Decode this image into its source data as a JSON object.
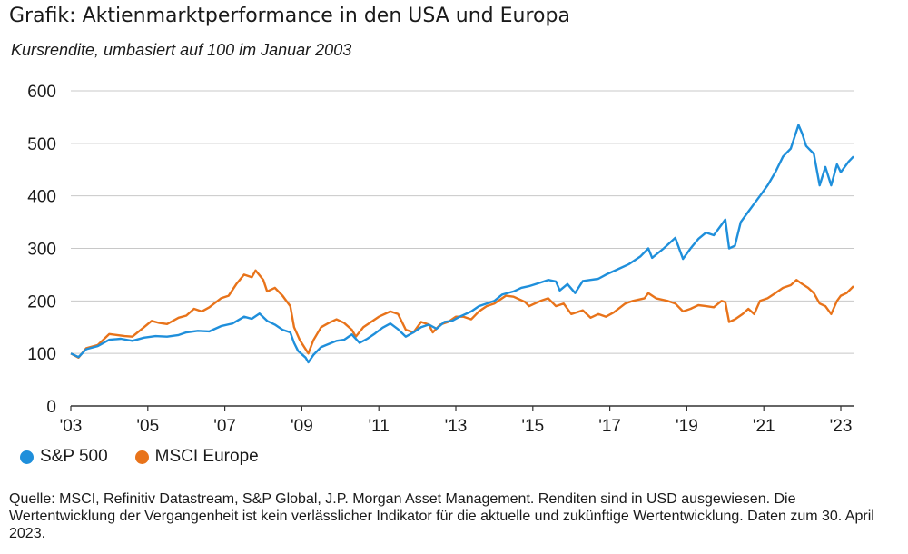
{
  "title": "Grafik: Aktienmarktperformance in den USA und Europa",
  "subtitle": "Kursrendite, umbasiert auf 100 im Januar 2003",
  "source": "Quelle: MSCI, Refinitiv Datastream, S&P Global, J.P. Morgan Asset Management. Renditen sind in USD ausgewiesen. Die Wertentwicklung der Vergangenheit ist kein verlässlicher Indikator für die aktuelle und zukünftige Wertentwicklung. Daten zum 30. April 2023.",
  "chart_data": {
    "type": "line",
    "ylim": [
      0,
      600
    ],
    "yticks": [
      "0",
      "100",
      "200",
      "300",
      "400",
      "500",
      "600"
    ],
    "xlim": [
      2003.0,
      2023.33
    ],
    "xticks": [
      {
        "x": 2003,
        "label": "'03"
      },
      {
        "x": 2005,
        "label": "'05"
      },
      {
        "x": 2007,
        "label": "'07"
      },
      {
        "x": 2009,
        "label": "'09"
      },
      {
        "x": 2011,
        "label": "'11"
      },
      {
        "x": 2013,
        "label": "'13"
      },
      {
        "x": 2015,
        "label": "'15"
      },
      {
        "x": 2017,
        "label": "'17"
      },
      {
        "x": 2019,
        "label": "'19"
      },
      {
        "x": 2021,
        "label": "'21"
      },
      {
        "x": 2023,
        "label": "'23"
      }
    ],
    "grid": true,
    "legend": "bottom-left",
    "series": [
      {
        "name": "S&P 500",
        "color": "#1f8fdb",
        "points": [
          [
            2003.0,
            100
          ],
          [
            2003.2,
            93
          ],
          [
            2003.4,
            108
          ],
          [
            2003.7,
            114
          ],
          [
            2004.0,
            126
          ],
          [
            2004.3,
            128
          ],
          [
            2004.6,
            124
          ],
          [
            2004.9,
            130
          ],
          [
            2005.2,
            133
          ],
          [
            2005.5,
            132
          ],
          [
            2005.8,
            135
          ],
          [
            2006.0,
            140
          ],
          [
            2006.3,
            143
          ],
          [
            2006.6,
            142
          ],
          [
            2006.9,
            152
          ],
          [
            2007.2,
            157
          ],
          [
            2007.5,
            170
          ],
          [
            2007.7,
            166
          ],
          [
            2007.9,
            176
          ],
          [
            2008.1,
            162
          ],
          [
            2008.3,
            155
          ],
          [
            2008.5,
            145
          ],
          [
            2008.7,
            140
          ],
          [
            2008.8,
            120
          ],
          [
            2008.9,
            105
          ],
          [
            2009.1,
            92
          ],
          [
            2009.17,
            83
          ],
          [
            2009.3,
            97
          ],
          [
            2009.5,
            112
          ],
          [
            2009.7,
            118
          ],
          [
            2009.9,
            124
          ],
          [
            2010.1,
            126
          ],
          [
            2010.3,
            136
          ],
          [
            2010.5,
            120
          ],
          [
            2010.7,
            128
          ],
          [
            2010.9,
            138
          ],
          [
            2011.1,
            149
          ],
          [
            2011.3,
            157
          ],
          [
            2011.5,
            146
          ],
          [
            2011.7,
            132
          ],
          [
            2011.9,
            140
          ],
          [
            2012.1,
            150
          ],
          [
            2012.3,
            155
          ],
          [
            2012.5,
            147
          ],
          [
            2012.7,
            160
          ],
          [
            2012.9,
            162
          ],
          [
            2013.1,
            170
          ],
          [
            2013.4,
            180
          ],
          [
            2013.6,
            190
          ],
          [
            2013.8,
            195
          ],
          [
            2014.0,
            200
          ],
          [
            2014.2,
            212
          ],
          [
            2014.5,
            218
          ],
          [
            2014.7,
            225
          ],
          [
            2014.9,
            228
          ],
          [
            2015.2,
            235
          ],
          [
            2015.4,
            240
          ],
          [
            2015.6,
            237
          ],
          [
            2015.7,
            220
          ],
          [
            2015.9,
            232
          ],
          [
            2016.1,
            215
          ],
          [
            2016.3,
            238
          ],
          [
            2016.5,
            240
          ],
          [
            2016.7,
            242
          ],
          [
            2016.9,
            250
          ],
          [
            2017.2,
            260
          ],
          [
            2017.5,
            270
          ],
          [
            2017.8,
            285
          ],
          [
            2018.0,
            300
          ],
          [
            2018.1,
            282
          ],
          [
            2018.4,
            300
          ],
          [
            2018.7,
            320
          ],
          [
            2018.9,
            280
          ],
          [
            2019.1,
            300
          ],
          [
            2019.3,
            318
          ],
          [
            2019.5,
            330
          ],
          [
            2019.7,
            325
          ],
          [
            2019.9,
            345
          ],
          [
            2020.0,
            355
          ],
          [
            2020.1,
            300
          ],
          [
            2020.25,
            305
          ],
          [
            2020.4,
            350
          ],
          [
            2020.6,
            370
          ],
          [
            2020.75,
            385
          ],
          [
            2020.9,
            400
          ],
          [
            2021.1,
            420
          ],
          [
            2021.3,
            445
          ],
          [
            2021.5,
            475
          ],
          [
            2021.7,
            490
          ],
          [
            2021.9,
            535
          ],
          [
            2022.0,
            518
          ],
          [
            2022.1,
            495
          ],
          [
            2022.3,
            480
          ],
          [
            2022.45,
            420
          ],
          [
            2022.6,
            455
          ],
          [
            2022.75,
            420
          ],
          [
            2022.9,
            460
          ],
          [
            2023.0,
            445
          ],
          [
            2023.1,
            455
          ],
          [
            2023.2,
            465
          ],
          [
            2023.33,
            475
          ]
        ]
      },
      {
        "name": "MSCI Europe",
        "color": "#e8731a",
        "points": [
          [
            2003.0,
            100
          ],
          [
            2003.2,
            92
          ],
          [
            2003.4,
            110
          ],
          [
            2003.7,
            116
          ],
          [
            2004.0,
            137
          ],
          [
            2004.2,
            135
          ],
          [
            2004.4,
            133
          ],
          [
            2004.6,
            132
          ],
          [
            2004.9,
            150
          ],
          [
            2005.1,
            162
          ],
          [
            2005.3,
            158
          ],
          [
            2005.5,
            156
          ],
          [
            2005.8,
            168
          ],
          [
            2006.0,
            172
          ],
          [
            2006.2,
            185
          ],
          [
            2006.4,
            180
          ],
          [
            2006.6,
            188
          ],
          [
            2006.9,
            205
          ],
          [
            2007.1,
            210
          ],
          [
            2007.3,
            232
          ],
          [
            2007.5,
            250
          ],
          [
            2007.7,
            245
          ],
          [
            2007.8,
            258
          ],
          [
            2008.0,
            240
          ],
          [
            2008.1,
            218
          ],
          [
            2008.3,
            225
          ],
          [
            2008.5,
            210
          ],
          [
            2008.7,
            190
          ],
          [
            2008.8,
            150
          ],
          [
            2008.95,
            125
          ],
          [
            2009.17,
            100
          ],
          [
            2009.3,
            125
          ],
          [
            2009.5,
            150
          ],
          [
            2009.7,
            158
          ],
          [
            2009.9,
            165
          ],
          [
            2010.1,
            158
          ],
          [
            2010.3,
            145
          ],
          [
            2010.4,
            132
          ],
          [
            2010.6,
            150
          ],
          [
            2010.8,
            160
          ],
          [
            2011.0,
            170
          ],
          [
            2011.3,
            180
          ],
          [
            2011.5,
            175
          ],
          [
            2011.7,
            145
          ],
          [
            2011.9,
            140
          ],
          [
            2012.1,
            160
          ],
          [
            2012.3,
            155
          ],
          [
            2012.4,
            140
          ],
          [
            2012.6,
            155
          ],
          [
            2012.8,
            160
          ],
          [
            2013.0,
            170
          ],
          [
            2013.2,
            170
          ],
          [
            2013.4,
            165
          ],
          [
            2013.6,
            180
          ],
          [
            2013.8,
            190
          ],
          [
            2014.0,
            195
          ],
          [
            2014.3,
            210
          ],
          [
            2014.5,
            208
          ],
          [
            2014.8,
            198
          ],
          [
            2014.9,
            190
          ],
          [
            2015.2,
            200
          ],
          [
            2015.4,
            205
          ],
          [
            2015.6,
            190
          ],
          [
            2015.8,
            195
          ],
          [
            2016.0,
            175
          ],
          [
            2016.3,
            182
          ],
          [
            2016.5,
            168
          ],
          [
            2016.7,
            175
          ],
          [
            2016.9,
            170
          ],
          [
            2017.1,
            178
          ],
          [
            2017.4,
            195
          ],
          [
            2017.6,
            200
          ],
          [
            2017.9,
            205
          ],
          [
            2018.0,
            215
          ],
          [
            2018.2,
            205
          ],
          [
            2018.5,
            200
          ],
          [
            2018.7,
            195
          ],
          [
            2018.9,
            180
          ],
          [
            2019.1,
            185
          ],
          [
            2019.3,
            192
          ],
          [
            2019.5,
            190
          ],
          [
            2019.7,
            188
          ],
          [
            2019.9,
            200
          ],
          [
            2020.0,
            198
          ],
          [
            2020.1,
            160
          ],
          [
            2020.25,
            165
          ],
          [
            2020.45,
            175
          ],
          [
            2020.6,
            185
          ],
          [
            2020.75,
            175
          ],
          [
            2020.9,
            200
          ],
          [
            2021.1,
            205
          ],
          [
            2021.3,
            215
          ],
          [
            2021.5,
            225
          ],
          [
            2021.7,
            230
          ],
          [
            2021.85,
            240
          ],
          [
            2022.0,
            232
          ],
          [
            2022.15,
            225
          ],
          [
            2022.3,
            215
          ],
          [
            2022.45,
            195
          ],
          [
            2022.6,
            190
          ],
          [
            2022.75,
            175
          ],
          [
            2022.9,
            200
          ],
          [
            2023.0,
            210
          ],
          [
            2023.15,
            215
          ],
          [
            2023.33,
            228
          ]
        ]
      }
    ]
  }
}
